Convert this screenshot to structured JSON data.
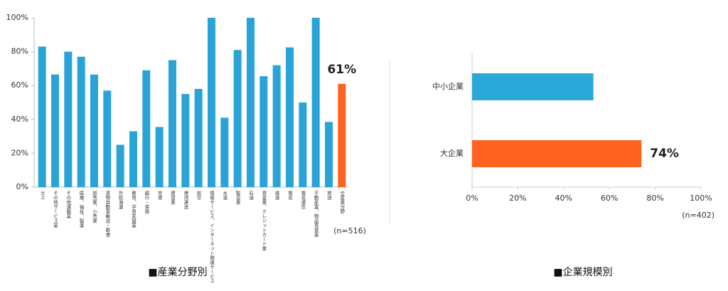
{
  "chart_data": [
    {
      "type": "bar",
      "categories": [
        "ガス",
        "その他サービス業",
        "その他運輸業",
        "医療、福祉、製薬",
        "卸売業、小売業",
        "貨物自動車輸送・郵便",
        "外航海運",
        "教育、学習支援業",
        "銀行・保険",
        "空港",
        "建設業",
        "港湾運送",
        "航空",
        "情報サービス、インターネット関連サービス",
        "水道",
        "製造業",
        "石油",
        "貸金業、クレジットカード業",
        "鉄道",
        "電気",
        "電気通信",
        "不動産業、物品賃貸業",
        "放送",
        "全産業分野"
      ],
      "values": [
        83,
        66.5,
        80,
        77,
        66.5,
        57,
        25,
        33,
        69,
        35.5,
        75,
        55,
        58,
        100,
        41,
        81,
        100,
        65.5,
        72,
        82.5,
        50,
        100,
        38.5,
        61
      ],
      "value_labels": [
        null,
        null,
        null,
        null,
        null,
        null,
        null,
        null,
        null,
        null,
        null,
        null,
        null,
        null,
        null,
        null,
        null,
        null,
        null,
        null,
        null,
        null,
        null,
        "61%"
      ],
      "colors": [
        "#2aa3d6",
        "#2aa3d6",
        "#2aa3d6",
        "#2aa3d6",
        "#2aa3d6",
        "#2aa3d6",
        "#2aa3d6",
        "#2aa3d6",
        "#2aa3d6",
        "#2aa3d6",
        "#2aa3d6",
        "#2aa3d6",
        "#2aa3d6",
        "#2aa3d6",
        "#2aa3d6",
        "#2aa3d6",
        "#2aa3d6",
        "#2aa3d6",
        "#2aa3d6",
        "#2aa3d6",
        "#2aa3d6",
        "#2aa3d6",
        "#2aa3d6",
        "#ff6321"
      ],
      "ylim": [
        0,
        100
      ],
      "yticks": [
        {
          "value": 0,
          "label": "0%"
        },
        {
          "value": 20,
          "label": "20%"
        },
        {
          "value": 40,
          "label": "40%"
        },
        {
          "value": 60,
          "label": "60%"
        },
        {
          "value": 80,
          "label": "80%"
        },
        {
          "value": 100,
          "label": "100%"
        }
      ],
      "note": "(n=516)",
      "caption": "■産業分野別"
    },
    {
      "type": "barh",
      "categories": [
        "中小企業",
        "大企業"
      ],
      "values": [
        53,
        74
      ],
      "value_labels": [
        null,
        "74%"
      ],
      "colors": [
        "#2aa8d8",
        "#ff6321"
      ],
      "xlim": [
        0,
        100
      ],
      "xticks": [
        {
          "value": 0,
          "label": "0%"
        },
        {
          "value": 20,
          "label": "20%"
        },
        {
          "value": 40,
          "label": "40%"
        },
        {
          "value": 60,
          "label": "60%"
        },
        {
          "value": 80,
          "label": "80%"
        },
        {
          "value": 100,
          "label": "100%"
        }
      ],
      "note": "(n=402)",
      "caption": "■企業規模別"
    }
  ]
}
